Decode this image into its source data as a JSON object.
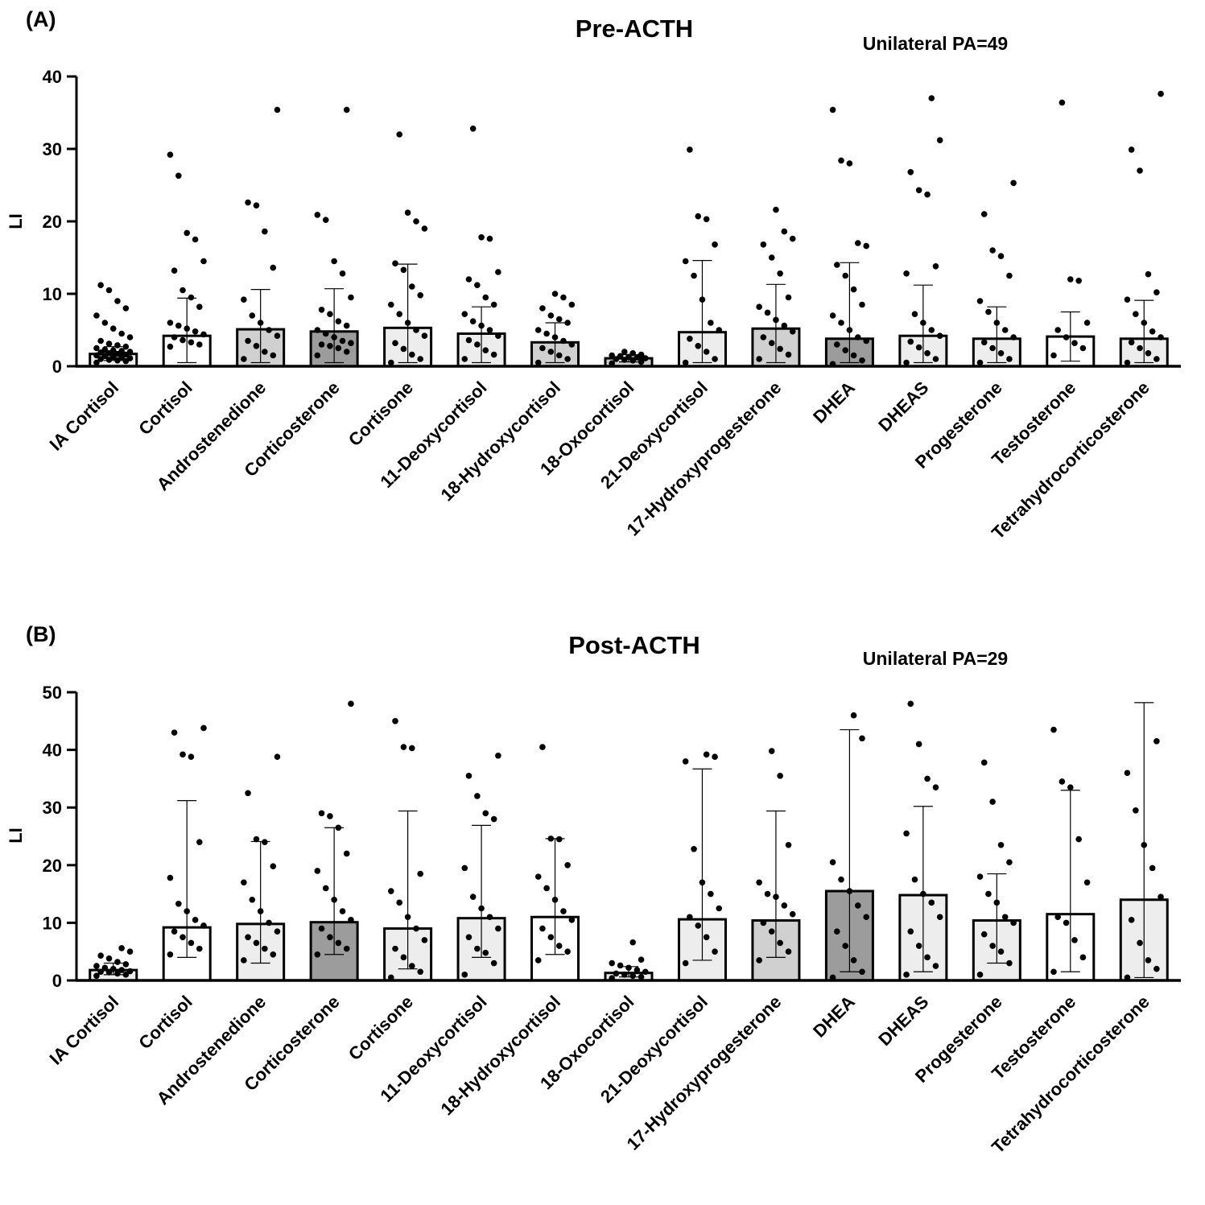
{
  "colors": {
    "white": "#ffffff",
    "light": "#ededed",
    "mid": "#d0d0d0",
    "dark": "#9c9c9c",
    "ink": "#000000"
  },
  "categories": [
    "IA Cortisol",
    "Cortisol",
    "Androstenedione",
    "Corticosterone",
    "Cortisone",
    "11-Deoxycortisol",
    "18-Hydroxycortisol",
    "18-Oxocortisol",
    "21-Deoxycortisol",
    "17-Hydroxyprogesterone",
    "DHEA",
    "DHEAS",
    "Progesterone",
    "Testosterone",
    "Tetrahydrocorticosterone"
  ],
  "chart_data": [
    {
      "type": "bar",
      "panel": "(A)",
      "title": "Pre-ACTH",
      "subtitle": "Unilateral PA=49",
      "ylabel": "LI",
      "ylim": [
        0,
        40
      ],
      "yticks": [
        "0",
        "10",
        "20",
        "30",
        "40"
      ],
      "categories": [
        "IA Cortisol",
        "Cortisol",
        "Androstenedione",
        "Corticosterone",
        "Cortisone",
        "11-Deoxycortisol",
        "18-Hydroxycortisol",
        "18-Oxocortisol",
        "21-Deoxycortisol",
        "17-Hydroxyprogesterone",
        "DHEA",
        "DHEAS",
        "Progesterone",
        "Testosterone",
        "Tetrahydrocorticosterone"
      ],
      "values": [
        1.7,
        4.2,
        5.1,
        4.8,
        5.3,
        4.5,
        3.3,
        1.1,
        4.7,
        5.2,
        3.8,
        4.2,
        3.8,
        4.1,
        3.8
      ],
      "error_upper": [
        2.7,
        9.4,
        10.6,
        10.7,
        14.1,
        8.2,
        6.0,
        1.6,
        14.6,
        11.3,
        14.3,
        11.2,
        8.2,
        7.5,
        9.1
      ],
      "error_lower": [
        0.8,
        0.5,
        0.5,
        0.5,
        0.5,
        0.5,
        0.5,
        0.6,
        0.5,
        0.5,
        0.5,
        0.5,
        0.5,
        0.7,
        0.5
      ],
      "fills": [
        "light",
        "white",
        "mid",
        "dark",
        "light",
        "light",
        "mid",
        "mid",
        "light",
        "mid",
        "dark",
        "light",
        "light",
        "white",
        "light"
      ],
      "points": [
        [
          0.5,
          0.7,
          0.8,
          0.9,
          1.0,
          1.1,
          1.2,
          1.3,
          1.4,
          1.5,
          1.6,
          1.7,
          1.8,
          1.9,
          2.0,
          2.1,
          2.2,
          2.3,
          2.5,
          2.7,
          2.9,
          3.1,
          3.5,
          4.0,
          4.5,
          5.2,
          6.0,
          7.0,
          8.0,
          9.0,
          10.5,
          11.2
        ],
        [
          2.7,
          3.0,
          3.3,
          3.6,
          4.0,
          4.4,
          4.8,
          5.2,
          5.6,
          6.0,
          8.2,
          9.5,
          10.5,
          13.2,
          14.5,
          17.5,
          18.4,
          26.3,
          29.2
        ],
        [
          1.0,
          1.5,
          2.0,
          2.8,
          3.5,
          4.2,
          5.0,
          6.0,
          7.0,
          9.2,
          13.6,
          18.6,
          22.2,
          22.6,
          35.4
        ],
        [
          1.5,
          2.0,
          2.5,
          2.8,
          3.0,
          3.2,
          3.5,
          4.0,
          4.5,
          5.0,
          5.6,
          6.2,
          7.2,
          7.8,
          9.5,
          12.8,
          14.5,
          20.2,
          20.9,
          35.4
        ],
        [
          0.5,
          1.0,
          1.6,
          2.4,
          3.2,
          4.2,
          5.0,
          6.0,
          7.2,
          8.5,
          9.8,
          11.0,
          13.3,
          14.2,
          19.0,
          20.0,
          21.2,
          32.0
        ],
        [
          1.0,
          1.6,
          2.2,
          3.0,
          3.6,
          4.2,
          5.0,
          5.6,
          6.2,
          7.2,
          8.5,
          9.5,
          11.2,
          12.0,
          13.0,
          17.6,
          17.8,
          32.8
        ],
        [
          0.5,
          1.0,
          1.5,
          2.0,
          2.5,
          3.0,
          3.5,
          4.0,
          4.5,
          5.0,
          6.0,
          6.5,
          7.0,
          8.0,
          8.5,
          9.5,
          10.0
        ],
        [
          0.4,
          0.6,
          0.8,
          0.9,
          1.0,
          1.1,
          1.2,
          1.3,
          1.4,
          1.5,
          1.6,
          1.8,
          2.0
        ],
        [
          0.5,
          1.0,
          2.0,
          2.8,
          3.8,
          5.0,
          6.0,
          9.2,
          12.5,
          14.5,
          16.8,
          20.3,
          20.7,
          29.9
        ],
        [
          1.0,
          1.6,
          2.4,
          3.2,
          4.0,
          4.8,
          5.6,
          6.4,
          7.4,
          8.2,
          9.5,
          12.8,
          15.0,
          16.8,
          17.6,
          18.6,
          21.6
        ],
        [
          0.3,
          0.8,
          1.5,
          2.2,
          3.0,
          3.5,
          4.0,
          5.0,
          6.0,
          7.0,
          8.5,
          10.6,
          12.5,
          14.0,
          16.6,
          17.0,
          28.0,
          28.4,
          35.4
        ],
        [
          0.5,
          1.0,
          1.8,
          2.6,
          3.4,
          4.2,
          5.0,
          6.0,
          7.2,
          12.8,
          13.8,
          23.7,
          24.3,
          26.8,
          31.2,
          37.0
        ],
        [
          0.5,
          1.0,
          1.8,
          2.5,
          3.3,
          4.0,
          5.0,
          6.0,
          7.5,
          9.0,
          12.5,
          15.2,
          16.0,
          21.0,
          25.3
        ],
        [
          1.5,
          2.5,
          3.2,
          4.0,
          5.0,
          6.0,
          11.8,
          12.0,
          36.4
        ],
        [
          0.5,
          1.0,
          1.8,
          2.5,
          3.3,
          4.0,
          4.8,
          6.0,
          7.2,
          9.2,
          10.2,
          12.7,
          27.0,
          29.9,
          37.6
        ]
      ]
    },
    {
      "type": "bar",
      "panel": "(B)",
      "title": "Post-ACTH",
      "subtitle": "Unilateral PA=29",
      "ylabel": "LI",
      "ylim": [
        0,
        50
      ],
      "yticks": [
        "0",
        "10",
        "20",
        "30",
        "40",
        "50"
      ],
      "categories": [
        "IA Cortisol",
        "Cortisol",
        "Androstenedione",
        "Corticosterone",
        "Cortisone",
        "11-Deoxycortisol",
        "18-Hydroxycortisol",
        "18-Oxocortisol",
        "21-Deoxycortisol",
        "17-Hydroxyprogesterone",
        "DHEA",
        "DHEAS",
        "Progesterone",
        "Testosterone",
        "Tetrahydrocorticosterone"
      ],
      "values": [
        1.8,
        9.2,
        9.8,
        10.1,
        9.0,
        10.8,
        11.0,
        1.3,
        10.6,
        10.4,
        15.5,
        14.8,
        10.4,
        11.5,
        14.0
      ],
      "error_upper": [
        3.0,
        31.2,
        24.1,
        26.5,
        29.4,
        26.9,
        24.6,
        2.4,
        36.7,
        29.4,
        43.5,
        30.2,
        18.5,
        33.0,
        48.2
      ],
      "error_lower": [
        1.0,
        4.0,
        3.0,
        4.5,
        2.0,
        4.0,
        4.5,
        0.6,
        3.5,
        4.0,
        1.5,
        1.5,
        3.0,
        1.5,
        0.5
      ],
      "fills": [
        "light",
        "white",
        "light",
        "dark",
        "light",
        "light",
        "white",
        "light",
        "light",
        "mid",
        "dark",
        "light",
        "light",
        "white",
        "light"
      ],
      "points": [
        [
          0.8,
          1.0,
          1.2,
          1.4,
          1.5,
          1.6,
          1.8,
          2.0,
          2.2,
          2.5,
          2.8,
          3.2,
          3.8,
          4.3,
          5.0,
          5.6
        ],
        [
          4.5,
          5.5,
          6.5,
          7.5,
          8.5,
          9.5,
          10.5,
          12.0,
          13.3,
          17.8,
          24.0,
          38.8,
          39.2,
          43.0,
          43.8
        ],
        [
          3.5,
          4.5,
          5.5,
          6.5,
          7.5,
          8.5,
          10.0,
          12.0,
          14.0,
          17.0,
          19.8,
          24.0,
          24.5,
          32.5,
          38.8
        ],
        [
          4.5,
          5.5,
          6.5,
          7.5,
          9.0,
          10.5,
          12.0,
          14.0,
          16.0,
          19.0,
          22.0,
          26.5,
          28.5,
          29.0,
          48.0
        ],
        [
          0.5,
          1.5,
          2.5,
          4.0,
          5.5,
          7.0,
          9.0,
          11.0,
          13.5,
          15.5,
          18.5,
          40.3,
          40.5,
          45.0
        ],
        [
          1.0,
          3.0,
          4.8,
          5.5,
          7.5,
          9.0,
          11.0,
          12.5,
          14.5,
          19.5,
          28.0,
          29.0,
          32.0,
          35.5,
          39.0
        ],
        [
          3.5,
          5.0,
          6.0,
          7.5,
          9.0,
          10.5,
          12.0,
          14.0,
          16.0,
          18.0,
          20.0,
          24.5,
          24.6,
          40.5
        ],
        [
          0.4,
          0.6,
          0.8,
          1.0,
          1.2,
          1.5,
          1.8,
          2.2,
          2.6,
          3.0,
          3.6,
          6.6
        ],
        [
          3.0,
          5.0,
          7.5,
          9.5,
          11.0,
          12.5,
          15.0,
          17.0,
          22.8,
          38.0,
          38.8,
          39.2
        ],
        [
          3.5,
          5.0,
          6.5,
          8.5,
          10.0,
          11.5,
          13.0,
          14.5,
          15.0,
          17.0,
          23.5,
          35.5,
          39.8
        ],
        [
          0.5,
          1.5,
          3.5,
          6.0,
          8.5,
          11.0,
          13.0,
          15.5,
          17.5,
          20.5,
          42.0,
          46.0
        ],
        [
          1.0,
          2.5,
          4.0,
          6.0,
          8.5,
          11.0,
          13.5,
          15.0,
          17.5,
          25.5,
          33.5,
          35.0,
          41.0,
          48.0
        ],
        [
          1.0,
          3.0,
          5.0,
          6.0,
          8.0,
          10.0,
          11.0,
          13.5,
          15.0,
          18.0,
          20.5,
          23.5,
          31.0,
          37.8
        ],
        [
          1.5,
          4.0,
          7.0,
          10.0,
          11.0,
          17.0,
          24.5,
          33.5,
          34.5,
          43.5
        ],
        [
          0.5,
          2.0,
          3.5,
          6.5,
          10.5,
          14.5,
          19.5,
          23.5,
          29.5,
          36.0,
          41.5
        ]
      ]
    }
  ]
}
